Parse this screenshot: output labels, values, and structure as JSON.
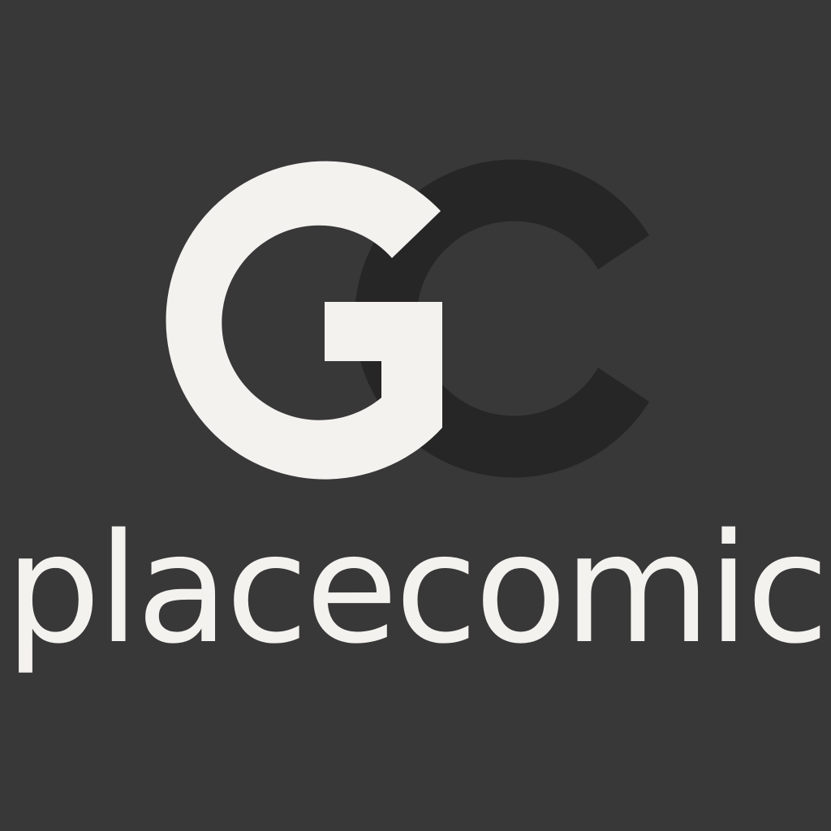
{
  "brand": {
    "monogram": "GC",
    "wordmark": "placecomic"
  },
  "colors": {
    "background": "#383838",
    "g_letter": "#f4f2ef",
    "c_letter": "#262626",
    "wordmark": "#f4f2ef"
  }
}
